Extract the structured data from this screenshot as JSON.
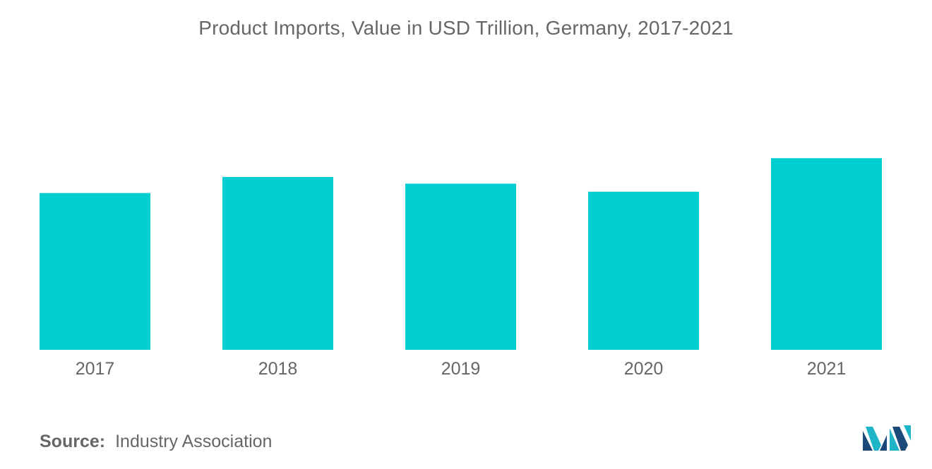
{
  "chart_data": {
    "type": "bar",
    "title": "Product Imports, Value in USD Trillion, Germany, 2017-2021",
    "categories": [
      "2017",
      "2018",
      "2019",
      "2020",
      "2021"
    ],
    "values": [
      1.17,
      1.29,
      1.24,
      1.18,
      1.43
    ],
    "ylim": [
      0,
      2.0
    ],
    "xlabel": "",
    "ylabel": "",
    "grid": false,
    "legend": "none",
    "colors": {
      "bar": "#00CED1",
      "text": "#666666"
    }
  },
  "source": {
    "label": "Source:",
    "text": "Industry Association"
  },
  "logo": {
    "icon": "mordor-intelligence-logo-icon",
    "colors": [
      "#1B4A7A",
      "#1FB5C9"
    ]
  }
}
